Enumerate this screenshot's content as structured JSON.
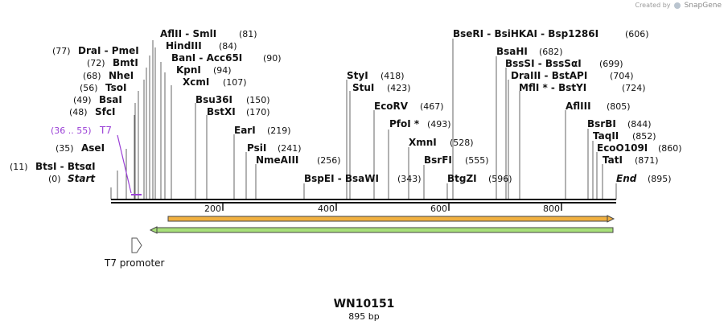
{
  "credit": {
    "prefix": "Created by",
    "brand": "SnapGene"
  },
  "title": "WN10151",
  "length_label": "895 bp",
  "feature_label": "T7 promoter",
  "primer": {
    "label": "T7",
    "range": "(36 .. 55)"
  },
  "ticks": [
    "200",
    "400",
    "600",
    "800"
  ],
  "sites": {
    "start": {
      "name": "Start",
      "pos": "(0)"
    },
    "end": {
      "name": "End",
      "pos": "(895)"
    },
    "btsi": {
      "name": "BtsI - BtsαI",
      "pos": "(11)"
    },
    "asei": {
      "name": "AseI",
      "pos": "(35)"
    },
    "sfci": {
      "name": "SfcI",
      "pos": "(48)"
    },
    "bsai": {
      "name": "BsaI",
      "pos": "(49)"
    },
    "tsoi": {
      "name": "TsoI",
      "pos": "(56)"
    },
    "nhei": {
      "name": "NheI",
      "pos": "(68)"
    },
    "bmti": {
      "name": "BmtI",
      "pos": "(72)"
    },
    "drai": {
      "name": "DraI - PmeI",
      "pos": "(77)"
    },
    "aflii": {
      "name": "AflII - SmlI",
      "pos": "(81)"
    },
    "hindiii": {
      "name": "HindIII",
      "pos": "(84)"
    },
    "bani": {
      "name": "BanI - Acc65I",
      "pos": "(90)"
    },
    "kpni": {
      "name": "KpnI",
      "pos": "(94)"
    },
    "xcmi": {
      "name": "XcmI",
      "pos": "(107)"
    },
    "bsu36i": {
      "name": "Bsu36I",
      "pos": "(150)"
    },
    "bstxi": {
      "name": "BstXI",
      "pos": "(170)"
    },
    "eari": {
      "name": "EarI",
      "pos": "(219)"
    },
    "psii": {
      "name": "PsiI",
      "pos": "(241)"
    },
    "nmeaiii": {
      "name": "NmeAIII",
      "pos": "(256)"
    },
    "bspei": {
      "name": "BspEI - BsaWI",
      "pos": "(343)"
    },
    "styi": {
      "name": "StyI",
      "pos": "(418)"
    },
    "stui": {
      "name": "StuI",
      "pos": "(423)"
    },
    "ecorv": {
      "name": "EcoRV",
      "pos": "(467)"
    },
    "pfoi": {
      "name": "PfoI *",
      "pos": "(493)"
    },
    "xmni": {
      "name": "XmnI",
      "pos": "(528)"
    },
    "bsrfi": {
      "name": "BsrFI",
      "pos": "(555)"
    },
    "btgzi": {
      "name": "BtgZI",
      "pos": "(596)"
    },
    "bseri": {
      "name": "BseRI - BsiHKAI - Bsp1286I",
      "pos": "(606)"
    },
    "bsahi": {
      "name": "BsaHI",
      "pos": "(682)"
    },
    "bsssi": {
      "name": "BssSI - BssSαI",
      "pos": "(699)"
    },
    "draiii": {
      "name": "DraIII - BstAPI",
      "pos": "(704)"
    },
    "mfli": {
      "name": "MflI * - BstYI",
      "pos": "(724)"
    },
    "afliii": {
      "name": "AflIII",
      "pos": "(805)"
    },
    "bsrbi": {
      "name": "BsrBI",
      "pos": "(844)"
    },
    "taqii": {
      "name": "TaqII",
      "pos": "(852)"
    },
    "ecoo109i": {
      "name": "EcoO109I",
      "pos": "(860)"
    },
    "tati": {
      "name": "TatI",
      "pos": "(871)"
    }
  },
  "colors": {
    "primer": "#9a3fd6",
    "orange": "#f0b040",
    "green": "#a8e07a",
    "outline": "#444444"
  }
}
